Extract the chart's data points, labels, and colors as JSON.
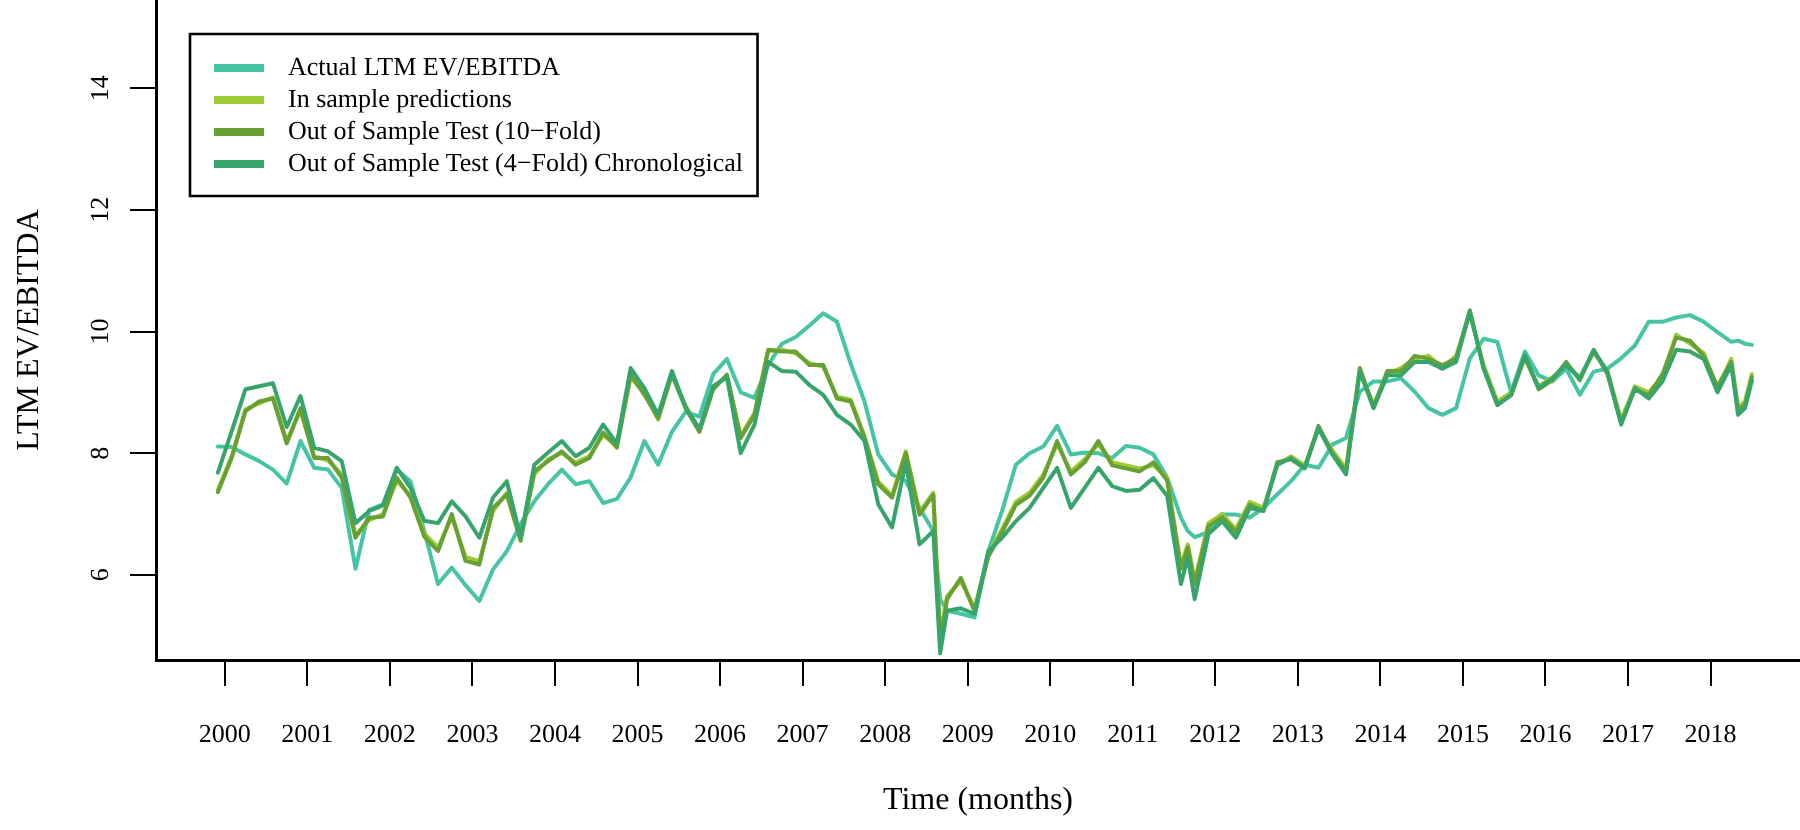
{
  "chart_data": {
    "type": "line",
    "xlabel": "Time (months)",
    "ylabel": "LTM EV/EBITDA",
    "legend": "top left",
    "xlim": [
      "1999-03",
      "2019-02"
    ],
    "xticks": [
      "2000",
      "2001",
      "2002",
      "2003",
      "2004",
      "2005",
      "2006",
      "2007",
      "2008",
      "2009",
      "2010",
      "2011",
      "2012",
      "2013",
      "2014",
      "2015",
      "2016",
      "2017",
      "2018"
    ],
    "ylim": [
      4.6,
      15.45
    ],
    "yticks": [
      6,
      8,
      10,
      12,
      14
    ],
    "x": [
      "1999-12",
      "2000-02",
      "2000-04",
      "2000-06",
      "2000-08",
      "2000-10",
      "2000-12",
      "2001-02",
      "2001-04",
      "2001-06",
      "2001-08",
      "2001-10",
      "2001-12",
      "2002-02",
      "2002-04",
      "2002-06",
      "2002-08",
      "2002-10",
      "2002-12",
      "2003-02",
      "2003-04",
      "2003-06",
      "2003-08",
      "2003-10",
      "2003-12",
      "2004-02",
      "2004-04",
      "2004-06",
      "2004-08",
      "2004-10",
      "2004-12",
      "2005-02",
      "2005-04",
      "2005-06",
      "2005-08",
      "2005-10",
      "2005-12",
      "2006-02",
      "2006-04",
      "2006-06",
      "2006-08",
      "2006-10",
      "2006-12",
      "2007-02",
      "2007-04",
      "2007-06",
      "2007-08",
      "2007-10",
      "2007-12",
      "2008-02",
      "2008-04",
      "2008-06",
      "2008-08",
      "2008-09",
      "2008-10",
      "2008-12",
      "2009-02",
      "2009-04",
      "2009-06",
      "2009-08",
      "2009-10",
      "2009-12",
      "2010-02",
      "2010-04",
      "2010-06",
      "2010-08",
      "2010-10",
      "2010-12",
      "2011-02",
      "2011-04",
      "2011-06",
      "2011-08",
      "2011-09",
      "2011-10",
      "2011-12",
      "2012-02",
      "2012-04",
      "2012-06",
      "2012-08",
      "2012-10",
      "2012-12",
      "2013-02",
      "2013-04",
      "2013-06",
      "2013-08",
      "2013-10",
      "2013-12",
      "2014-02",
      "2014-04",
      "2014-06",
      "2014-08",
      "2014-10",
      "2014-12",
      "2015-02",
      "2015-04",
      "2015-06",
      "2015-08",
      "2015-10",
      "2015-12",
      "2016-02",
      "2016-04",
      "2016-06",
      "2016-08",
      "2016-10",
      "2016-12",
      "2017-02",
      "2017-04",
      "2017-06",
      "2017-08",
      "2017-10",
      "2017-12",
      "2018-02",
      "2018-04",
      "2018-05",
      "2018-06",
      "2018-07"
    ],
    "series": [
      {
        "name": "Actual LTM EV/EBITDA",
        "color": "#46c5a5",
        "values": [
          8.11,
          8.1,
          7.98,
          7.87,
          7.73,
          7.5,
          8.2,
          7.76,
          7.73,
          7.43,
          6.1,
          7.07,
          7.16,
          7.73,
          7.54,
          6.72,
          5.85,
          6.12,
          5.83,
          5.57,
          6.09,
          6.39,
          6.83,
          7.21,
          7.49,
          7.73,
          7.49,
          7.54,
          7.18,
          7.25,
          7.6,
          8.2,
          7.81,
          8.35,
          8.68,
          8.6,
          9.3,
          9.55,
          9.0,
          8.91,
          9.45,
          9.8,
          9.91,
          10.1,
          10.3,
          10.16,
          9.47,
          8.85,
          7.98,
          7.65,
          7.54,
          7.1,
          6.72,
          5.6,
          5.41,
          5.36,
          5.3,
          6.39,
          7.05,
          7.81,
          8.0,
          8.11,
          8.45,
          7.98,
          8.01,
          8.0,
          7.92,
          8.12,
          8.09,
          7.98,
          7.6,
          6.94,
          6.72,
          6.62,
          6.7,
          6.99,
          6.99,
          6.94,
          7.1,
          7.32,
          7.54,
          7.81,
          7.76,
          8.14,
          8.25,
          9.01,
          9.18,
          9.18,
          9.23,
          9.01,
          8.74,
          8.63,
          8.74,
          9.56,
          9.88,
          9.83,
          9.0,
          9.67,
          9.28,
          9.18,
          9.39,
          8.96,
          9.34,
          9.39,
          9.56,
          9.77,
          10.16,
          10.16,
          10.23,
          10.27,
          10.16,
          9.99,
          9.83,
          9.85,
          9.8,
          9.78
        ]
      },
      {
        "name": "In sample predictions",
        "color": "#9dcb35",
        "values": [
          7.4,
          7.95,
          8.72,
          8.82,
          8.92,
          8.2,
          8.7,
          7.95,
          7.88,
          7.65,
          6.65,
          6.9,
          7.0,
          7.55,
          7.3,
          6.68,
          6.45,
          6.95,
          6.3,
          6.22,
          7.05,
          7.35,
          6.6,
          7.65,
          7.9,
          8.0,
          7.85,
          7.95,
          8.3,
          8.12,
          9.25,
          9.0,
          8.55,
          9.3,
          8.78,
          8.38,
          9.08,
          9.27,
          8.28,
          8.66,
          9.68,
          9.7,
          9.64,
          9.48,
          9.42,
          8.93,
          8.88,
          8.28,
          7.53,
          7.3,
          8.03,
          7.03,
          7.35,
          5.0,
          5.65,
          5.9,
          5.45,
          6.35,
          6.75,
          7.2,
          7.35,
          7.65,
          8.15,
          7.7,
          7.9,
          8.15,
          7.85,
          7.8,
          7.75,
          7.8,
          7.6,
          6.15,
          6.5,
          5.9,
          6.85,
          7.0,
          6.75,
          7.2,
          7.1,
          7.8,
          7.95,
          7.8,
          8.4,
          8.05,
          7.75,
          9.35,
          8.8,
          9.3,
          9.4,
          9.55,
          9.6,
          9.4,
          9.6,
          10.3,
          9.45,
          8.85,
          9.0,
          9.55,
          9.1,
          9.25,
          9.45,
          9.25,
          9.65,
          9.35,
          8.55,
          9.1,
          9.0,
          9.25,
          9.95,
          9.8,
          9.65,
          9.05,
          9.55,
          8.75,
          8.85,
          9.3
        ]
      },
      {
        "name": "Out of Sample Test (10−Fold)",
        "color": "#68a033",
        "values": [
          7.36,
          7.92,
          8.69,
          8.85,
          8.9,
          8.16,
          8.74,
          7.92,
          7.92,
          7.6,
          6.61,
          6.94,
          6.96,
          7.6,
          7.27,
          6.63,
          6.39,
          7.0,
          6.23,
          6.17,
          7.1,
          7.32,
          6.56,
          7.7,
          7.87,
          8.03,
          7.81,
          7.92,
          8.34,
          8.09,
          9.29,
          8.96,
          8.58,
          9.29,
          8.74,
          8.35,
          9.05,
          9.29,
          8.25,
          8.63,
          9.7,
          9.67,
          9.67,
          9.45,
          9.45,
          8.9,
          8.85,
          8.25,
          7.49,
          7.27,
          8.0,
          6.99,
          7.32,
          4.9,
          5.6,
          5.95,
          5.4,
          6.3,
          6.7,
          7.15,
          7.3,
          7.6,
          8.2,
          7.65,
          7.85,
          8.2,
          7.8,
          7.75,
          7.7,
          7.85,
          7.55,
          6.1,
          6.45,
          5.85,
          6.8,
          6.95,
          6.7,
          7.15,
          7.05,
          7.85,
          7.9,
          7.75,
          8.45,
          8.0,
          7.7,
          9.4,
          8.75,
          9.35,
          9.35,
          9.6,
          9.55,
          9.45,
          9.55,
          10.35,
          9.4,
          8.8,
          8.95,
          9.6,
          9.05,
          9.2,
          9.5,
          9.2,
          9.7,
          9.3,
          8.5,
          9.05,
          8.95,
          9.3,
          9.9,
          9.85,
          9.6,
          9.1,
          9.5,
          8.7,
          8.8,
          9.25
        ]
      },
      {
        "name": "Out of Sample Test (4−Fold) Chronological",
        "color": "#37a56b",
        "values": [
          7.68,
          8.36,
          9.05,
          9.1,
          9.15,
          8.43,
          8.94,
          8.09,
          8.03,
          7.87,
          6.85,
          7.05,
          7.14,
          7.76,
          7.43,
          6.89,
          6.85,
          7.21,
          6.96,
          6.61,
          7.27,
          7.54,
          6.61,
          7.81,
          8.01,
          8.2,
          7.95,
          8.09,
          8.47,
          8.16,
          9.4,
          9.07,
          8.63,
          9.35,
          8.75,
          8.4,
          9.1,
          9.25,
          8.0,
          8.47,
          9.5,
          9.35,
          9.34,
          9.12,
          8.96,
          8.63,
          8.47,
          8.2,
          7.16,
          6.78,
          7.85,
          6.5,
          6.72,
          4.71,
          5.41,
          5.45,
          5.36,
          6.39,
          6.61,
          6.88,
          7.1,
          7.43,
          7.76,
          7.1,
          7.43,
          7.76,
          7.46,
          7.38,
          7.4,
          7.59,
          7.3,
          5.85,
          6.29,
          5.6,
          6.67,
          6.88,
          6.61,
          7.1,
          7.05,
          7.81,
          7.92,
          7.76,
          8.41,
          7.98,
          7.65,
          9.34,
          8.74,
          9.28,
          9.28,
          9.5,
          9.5,
          9.39,
          9.5,
          10.32,
          9.39,
          8.79,
          8.96,
          9.61,
          9.07,
          9.23,
          9.45,
          9.23,
          9.69,
          9.34,
          8.47,
          9.07,
          8.9,
          9.18,
          9.7,
          9.67,
          9.55,
          9.0,
          9.45,
          8.63,
          8.74,
          9.19
        ]
      }
    ]
  }
}
